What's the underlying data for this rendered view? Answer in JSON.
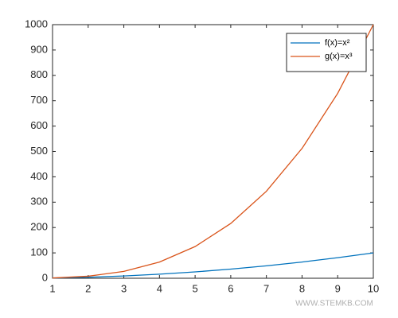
{
  "chart_data": {
    "type": "line",
    "x": [
      1,
      2,
      3,
      4,
      5,
      6,
      7,
      8,
      9,
      10
    ],
    "series": [
      {
        "name": "f(x)=x²",
        "color": "#0072bd",
        "values": [
          1,
          4,
          9,
          16,
          25,
          36,
          49,
          64,
          81,
          100
        ]
      },
      {
        "name": "g(x)=x³",
        "color": "#d95319",
        "values": [
          1,
          8,
          27,
          64,
          125,
          216,
          343,
          512,
          729,
          1000
        ]
      }
    ],
    "xlim": [
      1,
      10
    ],
    "xticks": [
      1,
      2,
      3,
      4,
      5,
      6,
      7,
      8,
      9,
      10
    ],
    "ylim": [
      0,
      1000
    ],
    "yticks": [
      0,
      100,
      200,
      300,
      400,
      500,
      600,
      700,
      800,
      900,
      1000
    ],
    "grid": false,
    "legend": "top-right",
    "watermark": "WWW.STEMKB.COM"
  }
}
